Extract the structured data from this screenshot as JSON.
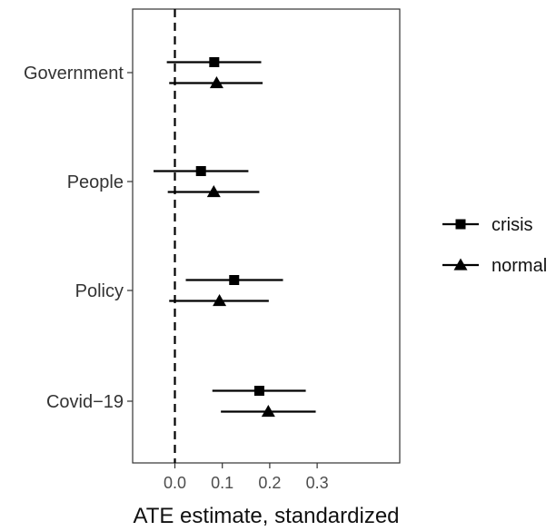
{
  "chart_data": {
    "type": "scatter",
    "subtype": "coefficient-plot",
    "title": "",
    "xlabel": "ATE estimate, standardized",
    "ylabel": "",
    "xlim": [
      -0.06,
      0.31
    ],
    "x_ticks": [
      0.0,
      0.1,
      0.2,
      0.3
    ],
    "x_tick_labels": [
      "0.0",
      "0.1",
      "0.2",
      "0.3"
    ],
    "reference_line": {
      "x": 0,
      "style": "dashed"
    },
    "grid": false,
    "legend_position": "right",
    "categories": [
      "Government",
      "People",
      "Policy",
      "Covid−19"
    ],
    "series": [
      {
        "name": "crisis",
        "marker": "square",
        "estimate": [
          0.083,
          0.055,
          0.125,
          0.178
        ],
        "ci_low": [
          -0.017,
          -0.045,
          0.023,
          0.079
        ],
        "ci_high": [
          0.182,
          0.155,
          0.228,
          0.276
        ]
      },
      {
        "name": "normal",
        "marker": "triangle",
        "estimate": [
          0.088,
          0.082,
          0.094,
          0.197
        ],
        "ci_low": [
          -0.012,
          -0.015,
          -0.012,
          0.097
        ],
        "ci_high": [
          0.185,
          0.178,
          0.198,
          0.297
        ]
      }
    ]
  }
}
